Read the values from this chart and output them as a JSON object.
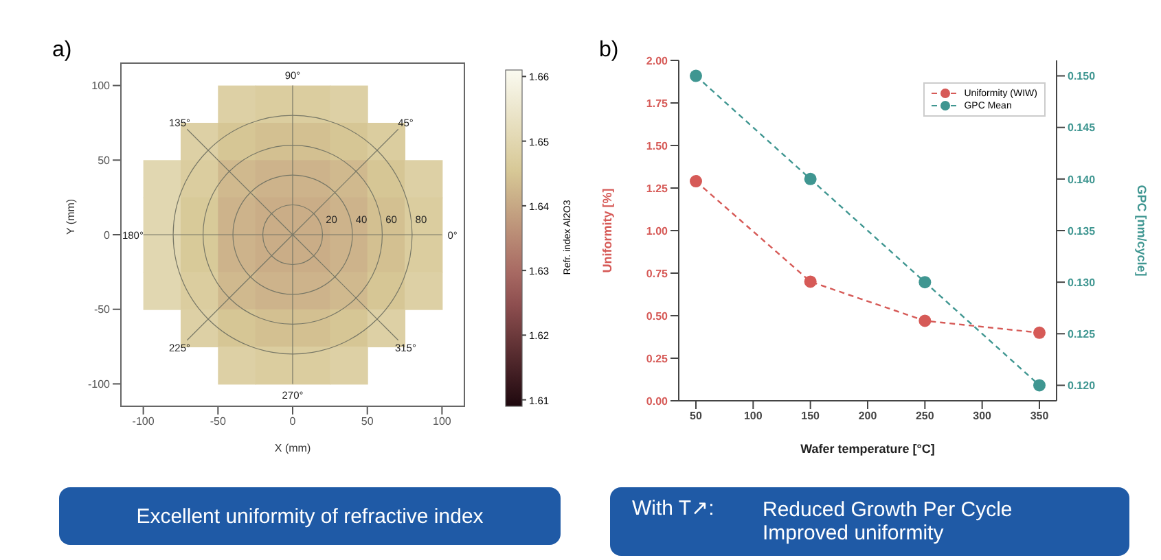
{
  "chart_data": [
    {
      "type": "scatter",
      "title": "a)",
      "xlabel": "X (mm)",
      "ylabel": "Y (mm)",
      "clabel": "Refr. index Al2O3",
      "marker": "square",
      "x": [
        -37.5,
        -12.5,
        12.5,
        37.5,
        -62.5,
        -37.5,
        -12.5,
        12.5,
        37.5,
        62.5,
        -87.5,
        -62.5,
        -37.5,
        -12.5,
        12.5,
        37.5,
        62.5,
        87.5,
        -87.5,
        -62.5,
        -37.5,
        -12.5,
        12.5,
        37.5,
        62.5,
        87.5,
        -87.5,
        -62.5,
        -37.5,
        -12.5,
        12.5,
        37.5,
        62.5,
        87.5,
        -87.5,
        -62.5,
        -37.5,
        -12.5,
        12.5,
        37.5,
        62.5,
        87.5,
        -62.5,
        -37.5,
        -12.5,
        12.5,
        37.5,
        62.5,
        -37.5,
        -12.5,
        12.5,
        37.5
      ],
      "values": [
        87.5,
        87.5,
        87.5,
        87.5,
        62.5,
        62.5,
        62.5,
        62.5,
        62.5,
        62.5,
        37.5,
        37.5,
        37.5,
        37.5,
        37.5,
        37.5,
        37.5,
        37.5,
        12.5,
        12.5,
        12.5,
        12.5,
        12.5,
        12.5,
        12.5,
        12.5,
        -12.5,
        -12.5,
        -12.5,
        -12.5,
        -12.5,
        -12.5,
        -12.5,
        -12.5,
        -37.5,
        -37.5,
        -37.5,
        -37.5,
        -37.5,
        -37.5,
        -37.5,
        -37.5,
        -62.5,
        -62.5,
        -62.5,
        -62.5,
        -62.5,
        -62.5,
        -87.5,
        -87.5,
        -87.5,
        -87.5
      ],
      "cvalues": [
        1.648,
        1.647,
        1.647,
        1.648,
        1.648,
        1.645,
        1.644,
        1.644,
        1.645,
        1.647,
        1.65,
        1.647,
        1.643,
        1.642,
        1.642,
        1.643,
        1.645,
        1.648,
        1.65,
        1.646,
        1.642,
        1.641,
        1.641,
        1.642,
        1.644,
        1.647,
        1.65,
        1.646,
        1.642,
        1.641,
        1.641,
        1.642,
        1.644,
        1.647,
        1.65,
        1.647,
        1.643,
        1.642,
        1.642,
        1.643,
        1.645,
        1.648,
        1.648,
        1.645,
        1.644,
        1.644,
        1.645,
        1.648,
        1.648,
        1.647,
        1.647,
        1.648
      ],
      "xlim": [
        -115,
        115
      ],
      "xticks": [
        -100,
        -50,
        0,
        50,
        100
      ],
      "ylim": [
        -115,
        115
      ],
      "yticks": [
        -100,
        -50,
        0,
        50,
        100
      ],
      "clim": [
        1.609,
        1.661
      ],
      "cticks": [
        1.61,
        1.62,
        1.63,
        1.64,
        1.65,
        1.66
      ],
      "grid": true,
      "annotations": [
        "0°",
        "45°",
        "90°",
        "135°",
        "180°",
        "225°",
        "270°",
        "315°",
        "20",
        "40",
        "60",
        "80",
        "Excellent uniformity of refractive index"
      ]
    },
    {
      "type": "line",
      "title": "b)",
      "xlabel": "Wafer temperature [°C]",
      "ylabel": "Uniformity [%]",
      "y2label": "GPC [nm/cycle]",
      "x": [
        50,
        150,
        250,
        350
      ],
      "xlim": [
        35,
        365
      ],
      "xticks": [
        50,
        100,
        150,
        200,
        250,
        300,
        350
      ],
      "ylim": [
        0,
        2
      ],
      "yticks": [
        {
          "value": 0,
          "label": "0.00"
        },
        {
          "value": 0.25,
          "label": "0.25"
        },
        {
          "value": 0.5,
          "label": "0.50"
        },
        {
          "value": 0.75,
          "label": "0.75"
        },
        {
          "value": 1,
          "label": "1.00"
        },
        {
          "value": 1.25,
          "label": "1.25"
        },
        {
          "value": 1.5,
          "label": "1.50"
        },
        {
          "value": 1.75,
          "label": "1.75"
        },
        {
          "value": 2,
          "label": "2.00"
        }
      ],
      "y2lim": [
        0.1185,
        0.1515
      ],
      "y2ticks": [
        {
          "value": 0.12,
          "label": "0.120"
        },
        {
          "value": 0.125,
          "label": "0.125"
        },
        {
          "value": 0.13,
          "label": "0.130"
        },
        {
          "value": 0.135,
          "label": "0.135"
        },
        {
          "value": 0.14,
          "label": "0.140"
        },
        {
          "value": 0.145,
          "label": "0.145"
        },
        {
          "value": 0.15,
          "label": "0.150"
        }
      ],
      "series": [
        {
          "name": "Uniformity (WIW)",
          "color": "#d65a57",
          "values": [
            1.29,
            0.7,
            0.47,
            0.4
          ]
        },
        {
          "name": "GPC Mean",
          "color": "#3f9691",
          "axis": "y2",
          "values": [
            0.15,
            0.14,
            0.13,
            0.12
          ]
        }
      ],
      "marker": "circle",
      "line_style": "dashed",
      "legend": "top right",
      "annotations": [
        "With T↗:",
        "Reduced Growth Per Cycle",
        "Improved uniformity"
      ]
    }
  ]
}
